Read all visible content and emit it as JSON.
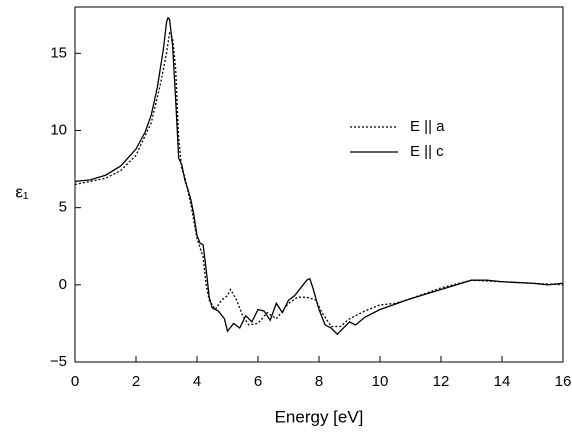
{
  "chart_data": {
    "type": "line",
    "x_label": "Energy [eV]",
    "y_label": "ε₁",
    "xlim": [
      0,
      16
    ],
    "xticks": [
      0,
      2,
      4,
      6,
      8,
      10,
      12,
      14,
      16
    ],
    "ylim": [
      -5,
      18
    ],
    "yticks": [
      {
        "value": -5,
        "label": "−5"
      },
      0,
      5,
      10,
      15
    ],
    "legend": "upper right",
    "series": [
      {
        "name": "E || a",
        "color": "#000000",
        "dash": "dotted",
        "x": [
          0,
          1,
          1.5,
          2,
          2.5,
          2.8,
          3.0,
          3.1,
          3.2,
          3.3,
          3.4,
          3.5,
          3.6,
          3.8,
          4.0,
          4.2,
          4.3,
          4.4,
          4.6,
          4.8,
          5.0,
          5.1,
          5.3,
          5.5,
          5.7,
          6.0,
          6.3,
          6.6,
          7.0,
          7.3,
          7.6,
          7.9,
          8.1,
          8.4,
          8.7,
          9.0,
          9.5,
          10,
          10.5,
          11,
          12,
          13,
          14,
          15,
          16
        ],
        "values": [
          6.5,
          6.9,
          7.4,
          8.4,
          10.5,
          13,
          15,
          16.3,
          16.0,
          14,
          9.5,
          7.5,
          7.0,
          5.2,
          3.0,
          1.8,
          0.0,
          -1.0,
          -1.6,
          -1.0,
          -0.7,
          -0.3,
          -1.0,
          -2.0,
          -2.6,
          -2.5,
          -1.8,
          -2.2,
          -1.2,
          -0.8,
          -0.8,
          -1.0,
          -1.8,
          -2.7,
          -2.7,
          -2.2,
          -1.7,
          -1.3,
          -1.2,
          -0.9,
          -0.2,
          0.3,
          0.2,
          0.1,
          0.0
        ]
      },
      {
        "name": "E || c",
        "color": "#000000",
        "dash": "solid",
        "x": [
          0,
          0.5,
          1,
          1.5,
          2,
          2.3,
          2.5,
          2.7,
          2.9,
          3.0,
          3.05,
          3.1,
          3.2,
          3.3,
          3.4,
          3.5,
          3.6,
          3.7,
          3.8,
          3.9,
          4.0,
          4.1,
          4.2,
          4.3,
          4.4,
          4.5,
          4.7,
          4.9,
          5.0,
          5.2,
          5.4,
          5.6,
          5.8,
          6.0,
          6.2,
          6.4,
          6.6,
          6.8,
          7.0,
          7.2,
          7.4,
          7.6,
          7.7,
          7.8,
          8.0,
          8.2,
          8.4,
          8.6,
          8.8,
          9.0,
          9.2,
          9.5,
          10,
          11,
          12,
          13,
          13.5,
          14,
          15,
          15.5,
          16
        ],
        "values": [
          6.7,
          6.8,
          7.1,
          7.7,
          8.8,
          9.9,
          11,
          12.8,
          15.3,
          17.0,
          17.3,
          17.2,
          15.5,
          12,
          8.2,
          7.8,
          6.8,
          6.2,
          5.5,
          4.5,
          3.2,
          2.7,
          2.6,
          1.0,
          -0.8,
          -1.5,
          -1.7,
          -2.2,
          -3.0,
          -2.5,
          -2.8,
          -2.0,
          -2.4,
          -1.6,
          -1.7,
          -2.3,
          -1.2,
          -1.8,
          -1.0,
          -0.7,
          -0.2,
          0.3,
          0.4,
          -0.2,
          -1.6,
          -2.6,
          -2.8,
          -3.2,
          -2.8,
          -2.4,
          -2.6,
          -2.1,
          -1.6,
          -0.9,
          -0.3,
          0.3,
          0.3,
          0.2,
          0.1,
          0.0,
          0.1
        ]
      }
    ]
  }
}
